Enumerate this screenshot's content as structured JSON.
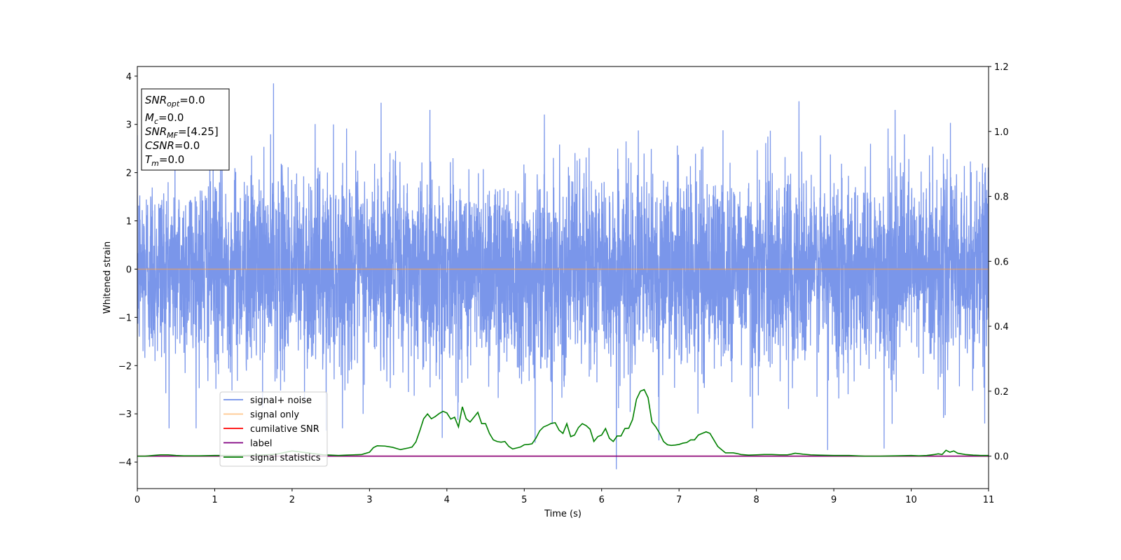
{
  "chart_data": {
    "type": "line",
    "title": "",
    "xlabel": "Time (s)",
    "ylabel": "Whitened strain",
    "xlim": [
      0,
      11
    ],
    "ylim": [
      -4.55,
      4.2
    ],
    "y2lim": [
      -0.1,
      1.2
    ],
    "xticks": [
      "0",
      "1",
      "2",
      "3",
      "4",
      "5",
      "6",
      "7",
      "8",
      "9",
      "10",
      "11"
    ],
    "yticks": [
      "4",
      "3",
      "2",
      "1",
      "0",
      "−1",
      "−2",
      "−3",
      "−4"
    ],
    "y2ticks": [
      "1.2",
      "1.0",
      "0.8",
      "0.6",
      "0.4",
      "0.2",
      "0.0"
    ],
    "grid": false,
    "legend_position": "lower-left",
    "info_box": [
      {
        "main": "SNR",
        "sub": "opt",
        "value": "=0.0"
      },
      {
        "main": "M",
        "sub": "c",
        "value": "=0.0"
      },
      {
        "main": "SNR",
        "sub": "MF",
        "value": "=[4.25]"
      },
      {
        "main": "CSNR",
        "sub": "",
        "value": "=0.0"
      },
      {
        "main": "T",
        "sub": "m",
        "value": "=0.0"
      }
    ],
    "series": [
      {
        "name": "signal+ noise",
        "color": "#4169e1",
        "axis": "left",
        "style": "noise",
        "noise_sigma": 1.0,
        "x_range": [
          0,
          11
        ],
        "spikes": [
          [
            1.76,
            3.85
          ],
          [
            3.15,
            3.45
          ],
          [
            8.55,
            3.48
          ],
          [
            6.19,
            -4.15
          ],
          [
            8.92,
            -3.75
          ],
          [
            9.65,
            -3.72
          ],
          [
            2.44,
            -3.35
          ],
          [
            3.94,
            -3.5
          ],
          [
            5.14,
            -3.6
          ],
          [
            7.95,
            -3.3
          ],
          [
            6.74,
            -3.55
          ],
          [
            10.95,
            -3.2
          ]
        ]
      },
      {
        "name": "signal only",
        "color": "#ffa040",
        "axis": "left",
        "style": "flat",
        "value": 0
      },
      {
        "name": "cumilative SNR",
        "color": "#ff0000",
        "axis": "right",
        "style": "flat",
        "value": 0.0
      },
      {
        "name": "label",
        "color": "#800080",
        "axis": "right",
        "style": "flat",
        "value": 0.0
      },
      {
        "name": "signal statistics",
        "color": "#008000",
        "axis": "right",
        "style": "line",
        "x": [
          0,
          0.1,
          0.2,
          0.3,
          0.4,
          0.5,
          0.6,
          0.8,
          1.0,
          1.2,
          1.4,
          1.6,
          1.8,
          2.0,
          2.1,
          2.2,
          2.3,
          2.4,
          2.5,
          2.6,
          2.7,
          2.8,
          2.9,
          3.0,
          3.05,
          3.1,
          3.2,
          3.3,
          3.4,
          3.5,
          3.55,
          3.6,
          3.65,
          3.7,
          3.75,
          3.8,
          3.85,
          3.9,
          3.95,
          4.0,
          4.05,
          4.1,
          4.15,
          4.2,
          4.25,
          4.3,
          4.35,
          4.4,
          4.45,
          4.5,
          4.55,
          4.6,
          4.65,
          4.7,
          4.75,
          4.8,
          4.85,
          4.9,
          4.95,
          5.0,
          5.05,
          5.1,
          5.15,
          5.2,
          5.25,
          5.3,
          5.35,
          5.4,
          5.45,
          5.5,
          5.55,
          5.6,
          5.65,
          5.7,
          5.75,
          5.8,
          5.85,
          5.9,
          5.95,
          6.0,
          6.05,
          6.1,
          6.15,
          6.2,
          6.25,
          6.3,
          6.35,
          6.4,
          6.45,
          6.5,
          6.55,
          6.6,
          6.65,
          6.7,
          6.75,
          6.8,
          6.85,
          6.9,
          6.95,
          7.0,
          7.05,
          7.1,
          7.15,
          7.2,
          7.25,
          7.3,
          7.35,
          7.4,
          7.45,
          7.5,
          7.55,
          7.6,
          7.65,
          7.7,
          7.75,
          7.8,
          7.9,
          8.0,
          8.1,
          8.2,
          8.3,
          8.4,
          8.45,
          8.5,
          8.6,
          8.7,
          8.8,
          9.0,
          9.2,
          9.4,
          9.6,
          9.8,
          10.0,
          10.1,
          10.2,
          10.3,
          10.35,
          10.4,
          10.45,
          10.5,
          10.55,
          10.6,
          10.7,
          10.8,
          10.9,
          11.0
        ],
        "y": [
          0.0,
          0.0,
          0.002,
          0.004,
          0.004,
          0.002,
          0.001,
          0.001,
          0.002,
          0.002,
          0.002,
          0.003,
          0.006,
          0.016,
          0.013,
          0.01,
          0.007,
          0.004,
          0.003,
          0.002,
          0.003,
          0.004,
          0.005,
          0.012,
          0.026,
          0.032,
          0.031,
          0.027,
          0.02,
          0.025,
          0.028,
          0.044,
          0.078,
          0.115,
          0.13,
          0.115,
          0.122,
          0.131,
          0.138,
          0.133,
          0.114,
          0.12,
          0.09,
          0.152,
          0.115,
          0.105,
          0.12,
          0.135,
          0.1,
          0.1,
          0.07,
          0.05,
          0.045,
          0.043,
          0.045,
          0.03,
          0.022,
          0.025,
          0.028,
          0.035,
          0.036,
          0.038,
          0.055,
          0.078,
          0.09,
          0.095,
          0.101,
          0.103,
          0.08,
          0.07,
          0.1,
          0.06,
          0.065,
          0.088,
          0.1,
          0.094,
          0.083,
          0.045,
          0.06,
          0.065,
          0.085,
          0.055,
          0.045,
          0.062,
          0.062,
          0.085,
          0.086,
          0.113,
          0.175,
          0.2,
          0.205,
          0.18,
          0.105,
          0.09,
          0.07,
          0.045,
          0.035,
          0.033,
          0.034,
          0.036,
          0.04,
          0.042,
          0.05,
          0.05,
          0.065,
          0.07,
          0.075,
          0.07,
          0.05,
          0.03,
          0.02,
          0.01,
          0.01,
          0.01,
          0.008,
          0.005,
          0.003,
          0.004,
          0.005,
          0.005,
          0.004,
          0.004,
          0.006,
          0.009,
          0.006,
          0.004,
          0.003,
          0.002,
          0.002,
          0.0,
          0.0,
          0.001,
          0.002,
          0.001,
          0.002,
          0.005,
          0.007,
          0.005,
          0.018,
          0.012,
          0.016,
          0.009,
          0.005,
          0.003,
          0.002,
          0.002
        ]
      }
    ]
  }
}
